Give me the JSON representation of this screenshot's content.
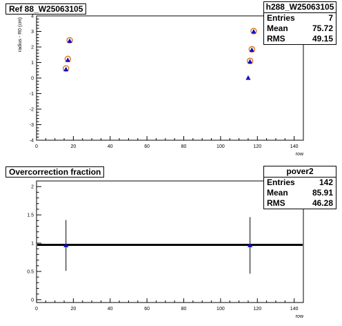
{
  "panels": [
    {
      "title": "Ref 88_W25063105",
      "stats": {
        "name": "h288_W25063105",
        "entries_label": "Entries",
        "entries": "7",
        "mean_label": "Mean",
        "mean": "75.72",
        "rms_label": "RMS",
        "rms": "49.15"
      }
    },
    {
      "title": "Overcorrection fraction",
      "stats": {
        "name": "pover2",
        "entries_label": "Entries",
        "entries": "142",
        "mean_label": "Mean",
        "mean": "85.91",
        "rms_label": "RMS",
        "rms": "46.28"
      }
    }
  ],
  "chart_data": [
    {
      "type": "scatter",
      "title": "Ref 88_W25063105",
      "xlabel": "row",
      "ylabel": "radius - R0 (cm)",
      "xlim": [
        0,
        145
      ],
      "ylim": [
        -4,
        4
      ],
      "xticks": [
        0,
        20,
        40,
        60,
        80,
        100,
        120,
        140
      ],
      "yticks": [
        -4,
        -3,
        -2,
        -1,
        0,
        1,
        2,
        3,
        4
      ],
      "series": [
        {
          "marker": "circle",
          "color": "#e07020",
          "x": [
            16,
            17,
            18,
            116,
            117,
            118
          ],
          "y": [
            0.62,
            1.23,
            2.43,
            1.1,
            1.85,
            3.02
          ]
        },
        {
          "marker": "triangle",
          "color": "#1010c0",
          "x": [
            16,
            17,
            18,
            115,
            116,
            117,
            118
          ],
          "y": [
            0.55,
            1.15,
            2.38,
            0.0,
            1.05,
            1.8,
            2.98
          ]
        }
      ]
    },
    {
      "type": "scatter",
      "title": "Overcorrection fraction",
      "xlabel": "row",
      "ylabel": "",
      "xlim": [
        0,
        145
      ],
      "ylim": [
        -0.05,
        2.1
      ],
      "xticks": [
        0,
        20,
        40,
        60,
        80,
        100,
        120,
        140
      ],
      "yticks": [
        0,
        0.5,
        1,
        1.5,
        2
      ],
      "fit_line": {
        "y": 0.97,
        "color": "#000000"
      },
      "series": [
        {
          "marker": "triangle",
          "color": "#1010c0",
          "x": [
            16,
            116
          ],
          "y": [
            0.96,
            0.96
          ],
          "err": [
            0.45,
            0.5
          ]
        }
      ]
    }
  ]
}
